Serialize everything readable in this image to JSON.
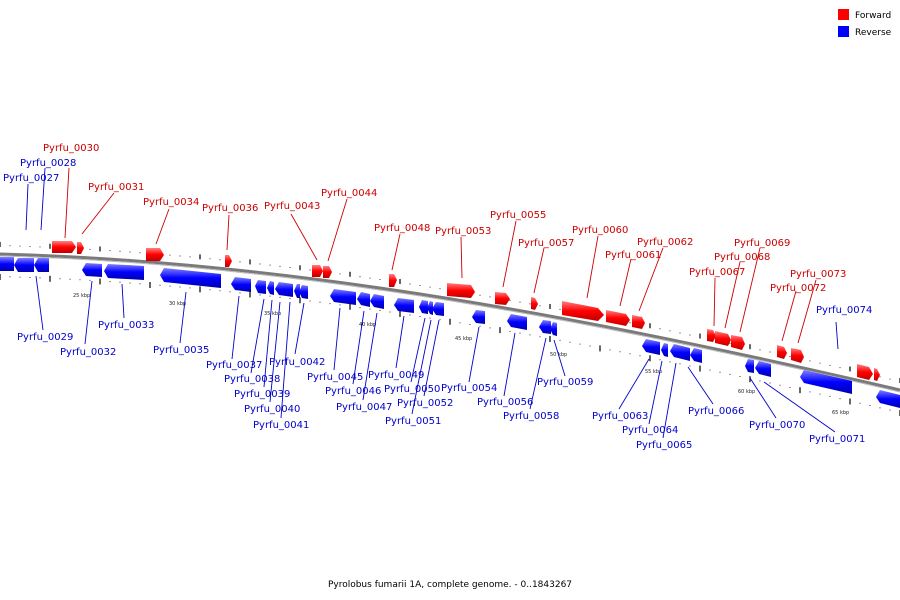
{
  "caption": "Pyrolobus fumarii 1A, complete genome. - 0..1843267",
  "legend": [
    {
      "label": "Forward",
      "color": "#ff0000"
    },
    {
      "label": "Reverse",
      "color": "#0000ff"
    }
  ],
  "colors": {
    "forward": "#ff0000",
    "reverse": "#0000ff",
    "backbone": "#808080"
  },
  "ticks": [
    "25 kbp",
    "30 kbp",
    "35 kbp",
    "40 kbp",
    "45 kbp",
    "50 kbp",
    "55 kbp",
    "60 kbp",
    "65 kbp"
  ],
  "genes": [
    "Pyrfu_0027",
    "Pyrfu_0028",
    "Pyrfu_0029",
    "Pyrfu_0030",
    "Pyrfu_0031",
    "Pyrfu_0032",
    "Pyrfu_0033",
    "Pyrfu_0034",
    "Pyrfu_0035",
    "Pyrfu_0036",
    "Pyrfu_0037",
    "Pyrfu_0038",
    "Pyrfu_0039",
    "Pyrfu_0040",
    "Pyrfu_0041",
    "Pyrfu_0042",
    "Pyrfu_0043",
    "Pyrfu_0044",
    "Pyrfu_0045",
    "Pyrfu_0046",
    "Pyrfu_0047",
    "Pyrfu_0048",
    "Pyrfu_0049",
    "Pyrfu_0050",
    "Pyrfu_0051",
    "Pyrfu_0052",
    "Pyrfu_0053",
    "Pyrfu_0054",
    "Pyrfu_0055",
    "Pyrfu_0056",
    "Pyrfu_0057",
    "Pyrfu_0058",
    "Pyrfu_0059",
    "Pyrfu_0060",
    "Pyrfu_0061",
    "Pyrfu_0062",
    "Pyrfu_0063",
    "Pyrfu_0064",
    "Pyrfu_0065",
    "Pyrfu_0066",
    "Pyrfu_0067",
    "Pyrfu_0068",
    "Pyrfu_0069",
    "Pyrfu_0070",
    "Pyrfu_0071",
    "Pyrfu_0072",
    "Pyrfu_0073",
    "Pyrfu_0074"
  ]
}
